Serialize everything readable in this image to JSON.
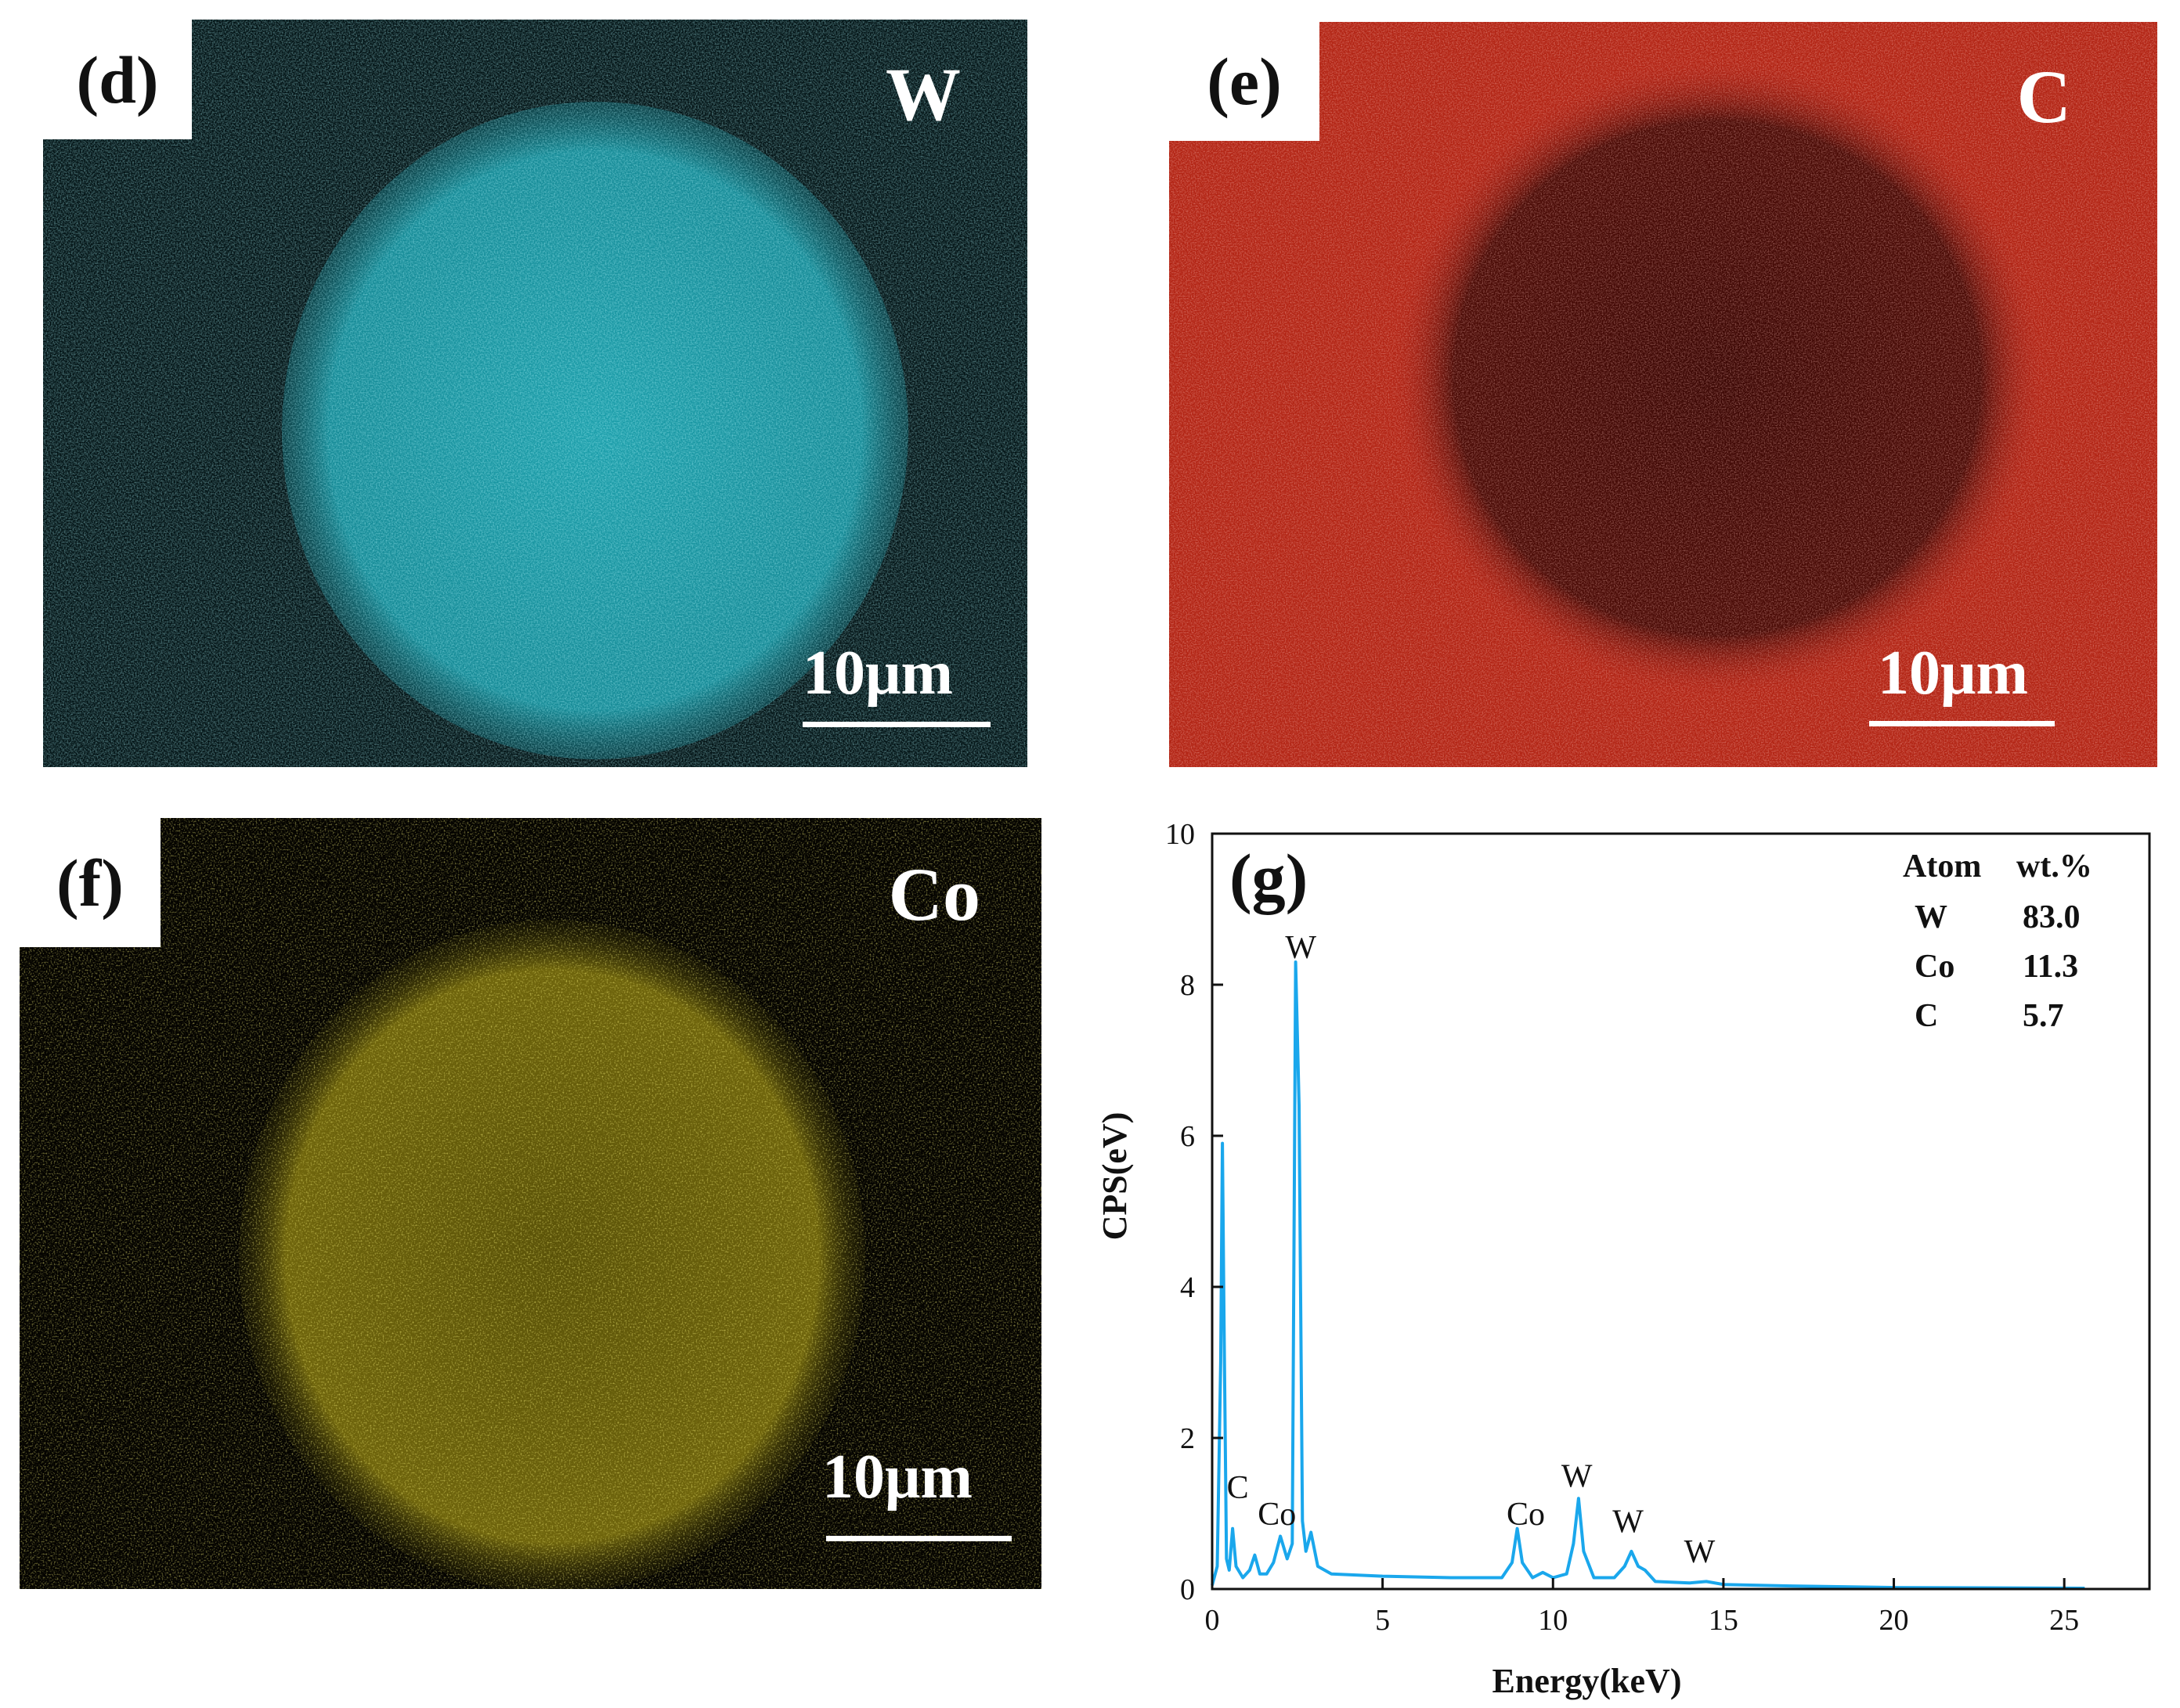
{
  "panels": {
    "d": {
      "label": "(d)",
      "element": "W",
      "scale": "10μm",
      "color": "#18b4c2"
    },
    "e": {
      "label": "(e)",
      "element": "C",
      "scale": "10μm",
      "color": "#d2301f"
    },
    "f": {
      "label": "(f)",
      "element": "Co",
      "scale": "10μm",
      "color": "#d2c11a"
    }
  },
  "chart_data": {
    "type": "line",
    "label": "(g)",
    "xlabel": "Energy(keV)",
    "ylabel": "CPS(eV)",
    "xlim": [
      0,
      27.5
    ],
    "ylim": [
      0,
      10
    ],
    "xticks": [
      0,
      5,
      10,
      15,
      20,
      25
    ],
    "yticks": [
      0,
      2,
      4,
      6,
      8,
      10
    ],
    "line_color": "#1aa7ec",
    "series": [
      {
        "values": [
          [
            0.0,
            0.05
          ],
          [
            0.15,
            0.3
          ],
          [
            0.25,
            3.0
          ],
          [
            0.3,
            5.9
          ],
          [
            0.35,
            3.5
          ],
          [
            0.42,
            0.4
          ],
          [
            0.5,
            0.25
          ],
          [
            0.6,
            0.8
          ],
          [
            0.7,
            0.3
          ],
          [
            0.9,
            0.15
          ],
          [
            1.1,
            0.25
          ],
          [
            1.25,
            0.45
          ],
          [
            1.4,
            0.2
          ],
          [
            1.6,
            0.2
          ],
          [
            1.8,
            0.35
          ],
          [
            2.0,
            0.7
          ],
          [
            2.2,
            0.4
          ],
          [
            2.35,
            0.6
          ],
          [
            2.45,
            8.3
          ],
          [
            2.55,
            6.4
          ],
          [
            2.65,
            0.9
          ],
          [
            2.75,
            0.5
          ],
          [
            2.9,
            0.75
          ],
          [
            3.1,
            0.3
          ],
          [
            3.5,
            0.2
          ],
          [
            5.0,
            0.17
          ],
          [
            7.0,
            0.15
          ],
          [
            8.5,
            0.15
          ],
          [
            8.8,
            0.35
          ],
          [
            8.95,
            0.8
          ],
          [
            9.1,
            0.35
          ],
          [
            9.4,
            0.15
          ],
          [
            9.7,
            0.22
          ],
          [
            10.0,
            0.15
          ],
          [
            10.4,
            0.2
          ],
          [
            10.6,
            0.6
          ],
          [
            10.75,
            1.2
          ],
          [
            10.9,
            0.5
          ],
          [
            11.2,
            0.15
          ],
          [
            11.8,
            0.15
          ],
          [
            12.1,
            0.3
          ],
          [
            12.3,
            0.5
          ],
          [
            12.5,
            0.3
          ],
          [
            12.7,
            0.25
          ],
          [
            13.0,
            0.1
          ],
          [
            14.0,
            0.08
          ],
          [
            14.5,
            0.1
          ],
          [
            15.0,
            0.06
          ],
          [
            17.0,
            0.04
          ],
          [
            20.0,
            0.02
          ],
          [
            25.6,
            0.01
          ]
        ]
      }
    ],
    "annotations": [
      {
        "text": "W",
        "x": 2.6,
        "y": 8.35
      },
      {
        "text": "C",
        "x": 0.75,
        "y": 1.2
      },
      {
        "text": "Co",
        "x": 1.9,
        "y": 0.85
      },
      {
        "text": "Co",
        "x": 9.2,
        "y": 0.85
      },
      {
        "text": "W",
        "x": 10.7,
        "y": 1.35
      },
      {
        "text": "W",
        "x": 12.2,
        "y": 0.75
      },
      {
        "text": "W",
        "x": 14.3,
        "y": 0.35
      }
    ],
    "table": {
      "headers": [
        "Atom",
        "wt.%"
      ],
      "rows": [
        [
          "W",
          "83.0"
        ],
        [
          "Co",
          "11.3"
        ],
        [
          "C",
          "5.7"
        ]
      ]
    }
  }
}
